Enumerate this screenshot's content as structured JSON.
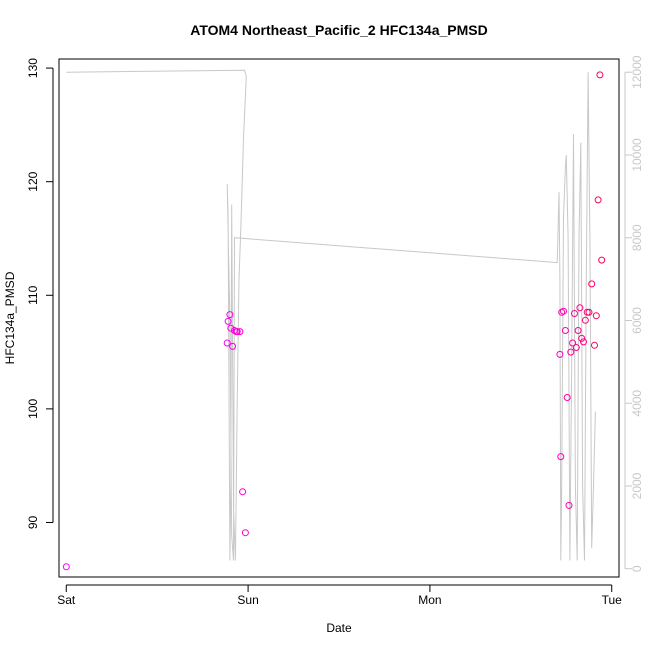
{
  "chart_data": {
    "type": "scatter",
    "title": "ATOM4 Northeast_Pacific_2 HFC134a_PMSD",
    "xlabel": "Date",
    "ylabel": "HFC134a_PMSD",
    "x_ticks": [
      {
        "label": "Sat",
        "value": 0
      },
      {
        "label": "Sun",
        "value": 1
      },
      {
        "label": "Mon",
        "value": 2
      },
      {
        "label": "Tue",
        "value": 3
      }
    ],
    "xlim": [
      -0.04,
      3.04
    ],
    "ylim": [
      85.2,
      130.8
    ],
    "y_ticks": [
      90,
      100,
      110,
      120,
      130
    ],
    "y2lim": [
      -200,
      12320
    ],
    "y2_ticks": [
      0,
      2000,
      4000,
      6000,
      8000,
      10000,
      12000
    ],
    "colors": {
      "points_start": "#ff00ff",
      "points_end": "#ff0050",
      "line": "#c8c8c8",
      "axis": "#000000",
      "axis_right": "#c8c8c8"
    },
    "series": [
      {
        "type": "points",
        "axis": "left",
        "points": [
          [
            0.0,
            86.1
          ],
          [
            0.885,
            105.8
          ],
          [
            0.89,
            107.7
          ],
          [
            0.9,
            108.3
          ],
          [
            0.905,
            107.1
          ],
          [
            0.915,
            105.5
          ],
          [
            0.925,
            106.9
          ],
          [
            0.935,
            106.8
          ],
          [
            0.94,
            106.8
          ],
          [
            0.955,
            106.8
          ],
          [
            0.97,
            92.7
          ],
          [
            0.985,
            89.1
          ],
          [
            2.715,
            104.8
          ],
          [
            2.72,
            95.8
          ],
          [
            2.725,
            108.5
          ],
          [
            2.735,
            108.6
          ],
          [
            2.745,
            106.9
          ],
          [
            2.755,
            101.0
          ],
          [
            2.765,
            91.5
          ],
          [
            2.775,
            105.0
          ],
          [
            2.785,
            105.8
          ],
          [
            2.795,
            108.4
          ],
          [
            2.805,
            105.4
          ],
          [
            2.815,
            106.9
          ],
          [
            2.825,
            108.9
          ],
          [
            2.835,
            106.2
          ],
          [
            2.845,
            105.9
          ],
          [
            2.855,
            107.8
          ],
          [
            2.865,
            108.5
          ],
          [
            2.875,
            108.5
          ],
          [
            2.89,
            111.0
          ],
          [
            2.905,
            105.6
          ],
          [
            2.915,
            108.2
          ],
          [
            2.925,
            118.4
          ],
          [
            2.935,
            129.4
          ],
          [
            2.945,
            113.1
          ]
        ]
      },
      {
        "type": "line",
        "axis": "right",
        "points": [
          [
            0.0,
            12000
          ],
          [
            0.98,
            12050
          ],
          [
            0.99,
            11900
          ],
          [
            0.975,
            10400
          ],
          [
            0.96,
            8200
          ],
          [
            0.95,
            7000
          ],
          [
            0.945,
            5500
          ],
          [
            0.94,
            4000
          ],
          [
            0.935,
            2000
          ],
          [
            0.93,
            200
          ],
          [
            0.92,
            1500
          ],
          [
            0.91,
            8800
          ],
          [
            0.905,
            2000
          ],
          [
            0.9,
            200
          ],
          [
            0.89,
            8500
          ],
          [
            0.885,
            9300
          ],
          [
            0.9,
            6000
          ],
          [
            0.91,
            800
          ],
          [
            0.92,
            200
          ],
          [
            0.925,
            8000
          ],
          [
            2.7,
            7400
          ],
          [
            2.71,
            9100
          ],
          [
            2.715,
            7000
          ],
          [
            2.72,
            200
          ],
          [
            2.725,
            2000
          ],
          [
            2.735,
            8500
          ],
          [
            2.745,
            9700
          ],
          [
            2.75,
            10000
          ],
          [
            2.76,
            8000
          ],
          [
            2.77,
            200
          ],
          [
            2.78,
            5000
          ],
          [
            2.79,
            10500
          ],
          [
            2.8,
            2000
          ],
          [
            2.81,
            200
          ],
          [
            2.82,
            8000
          ],
          [
            2.83,
            10300
          ],
          [
            2.84,
            2000
          ],
          [
            2.85,
            200
          ],
          [
            2.86,
            7000
          ],
          [
            2.87,
            12000
          ],
          [
            2.88,
            8000
          ],
          [
            2.89,
            500
          ],
          [
            2.9,
            2000
          ],
          [
            2.91,
            3800
          ]
        ]
      }
    ]
  }
}
